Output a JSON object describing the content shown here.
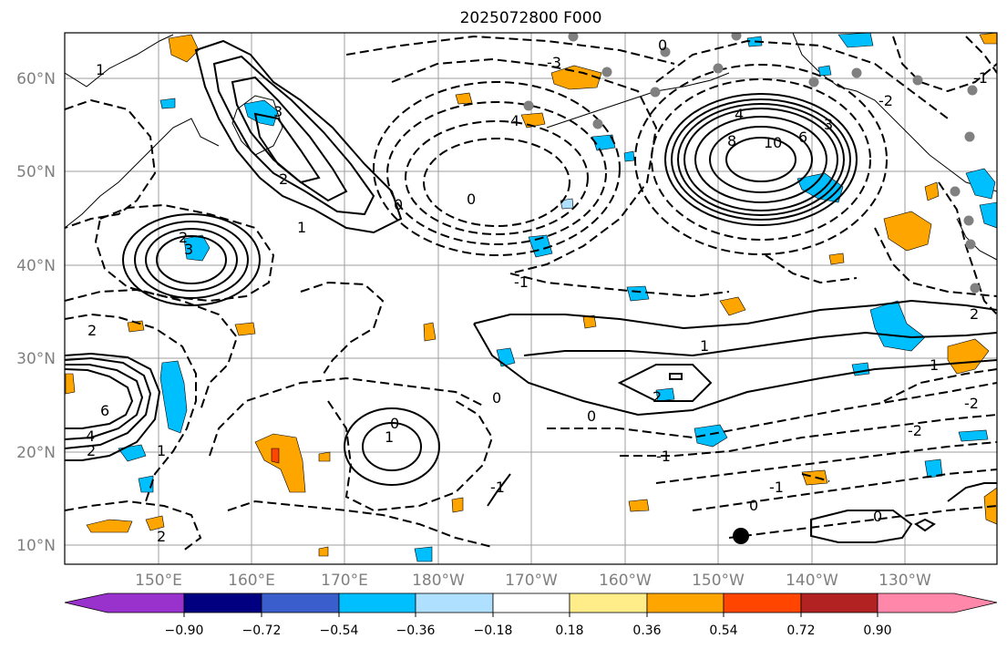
{
  "title": "2025072800 F000",
  "map": {
    "lat_labels": [
      "60°N",
      "50°N",
      "40°N",
      "30°N",
      "20°N",
      "10°N"
    ],
    "lon_labels": [
      "150°E",
      "160°E",
      "170°E",
      "180°W",
      "170°W",
      "160°W",
      "150°W",
      "140°W",
      "130°W"
    ],
    "contour_labels": [
      "1",
      "3",
      "0",
      "1",
      "2",
      "3",
      "0",
      "2",
      "-1",
      "0",
      "4",
      "-3",
      "8",
      "10",
      "6",
      "4",
      "3",
      "1",
      "2",
      "2",
      "6",
      "4",
      "1",
      "2",
      "0",
      "1",
      "2",
      "0",
      "-1",
      "1",
      "-1",
      "2",
      "0",
      "-2",
      "-2",
      "-1",
      "0",
      "-2",
      "-1",
      "0"
    ]
  },
  "colorbar": {
    "tick_labels": [
      "−0.90",
      "−0.72",
      "−0.54",
      "−0.36",
      "−0.18",
      "0.18",
      "0.36",
      "0.54",
      "0.72",
      "0.90"
    ],
    "colors": [
      "#9932cc",
      "#000080",
      "#3a5fcd",
      "#00bfff",
      "#b0e0ff",
      "#ffffff",
      "#ffed8a",
      "#ffa500",
      "#ff4500",
      "#b22222",
      "#ff88aa"
    ]
  }
}
